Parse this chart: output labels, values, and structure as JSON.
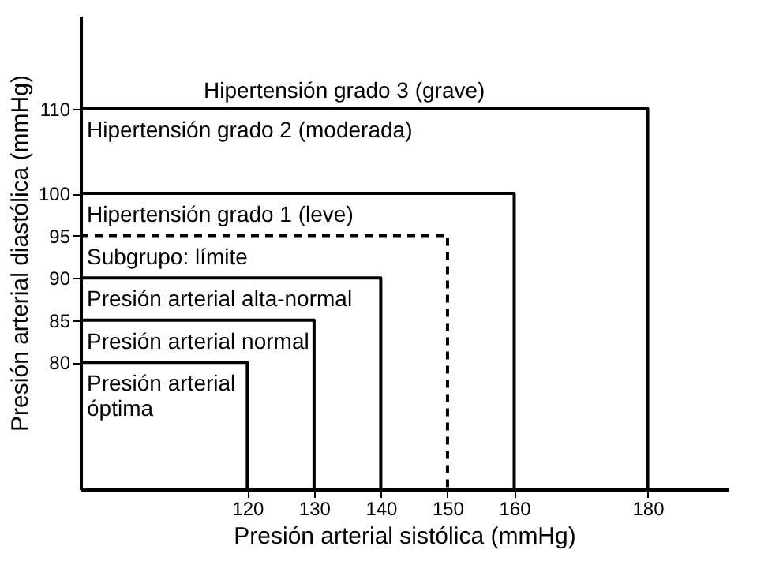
{
  "chart_data": {
    "type": "line",
    "xlabel": "Presión arterial sistólica (mmHg)",
    "ylabel": "Presión arterial diastólica (mmHg)",
    "xlim": [
      95,
      192
    ],
    "ylim": [
      65,
      121
    ],
    "xticks": [
      120,
      130,
      140,
      150,
      160,
      180
    ],
    "yticks": [
      80,
      85,
      90,
      95,
      100,
      110
    ],
    "marker": "none",
    "series": [
      {
        "name": "Hipertensión grado 2 (moderada)",
        "color": "#000000",
        "x": [
          95,
          180,
          180
        ],
        "values": [
          110,
          110,
          65
        ]
      },
      {
        "name": "Hipertensión grado 1 (leve)",
        "color": "#000000",
        "x": [
          95,
          160,
          160
        ],
        "values": [
          100,
          100,
          65
        ]
      },
      {
        "name": "Subgrupo: límite",
        "color": "#000000",
        "x": [
          95,
          150,
          150
        ],
        "values": [
          95,
          95,
          65
        ],
        "line_style": "dashed"
      },
      {
        "name": "Presión arterial alta-normal",
        "color": "#000000",
        "x": [
          95,
          140,
          140
        ],
        "values": [
          90,
          90,
          65
        ]
      },
      {
        "name": "Presión arterial normal",
        "color": "#000000",
        "x": [
          95,
          130,
          130
        ],
        "values": [
          85,
          85,
          65
        ]
      },
      {
        "name": "Presión arterial\nóptima",
        "color": "#000000",
        "x": [
          95,
          120,
          120
        ],
        "values": [
          80,
          80,
          65
        ]
      }
    ],
    "annotations": [
      "Hipertensión grado 3 (grave)"
    ]
  }
}
